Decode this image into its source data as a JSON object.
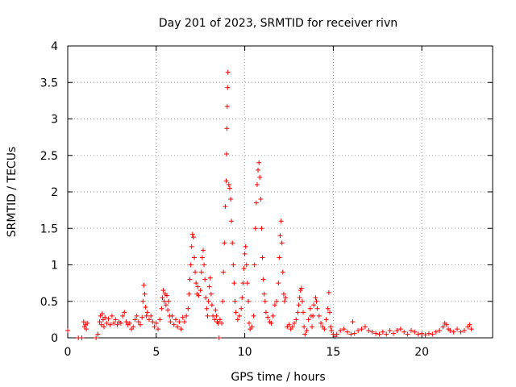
{
  "chart_data": {
    "type": "scatter",
    "title": "Day 201 of 2023, SRMTID for receiver rivn",
    "xlabel": "GPS time / hours",
    "ylabel": "SRMTID / TECUs",
    "xlim": [
      0,
      24
    ],
    "ylim": [
      0,
      4
    ],
    "xticks": [
      0,
      5,
      10,
      15,
      20
    ],
    "xtick_labels": [
      "0",
      "5",
      "10",
      "15",
      "20"
    ],
    "yticks": [
      0,
      0.5,
      1,
      1.5,
      2,
      2.5,
      3,
      3.5,
      4
    ],
    "ytick_labels": [
      "0",
      "0.5",
      "1",
      "1.5",
      "2",
      "2.5",
      "3",
      "3.5",
      "4"
    ],
    "grid": true,
    "marker": "+",
    "color": "#ff0000",
    "series": [
      {
        "name": "SRMTID",
        "points": [
          [
            0.0,
            0.1
          ],
          [
            0.6,
            0.0
          ],
          [
            0.8,
            0.0
          ],
          [
            0.9,
            0.22
          ],
          [
            0.95,
            0.15
          ],
          [
            1.0,
            0.18
          ],
          [
            1.05,
            0.12
          ],
          [
            1.1,
            0.2
          ],
          [
            1.6,
            0.0
          ],
          [
            1.7,
            0.05
          ],
          [
            1.8,
            0.22
          ],
          [
            1.85,
            0.3
          ],
          [
            1.9,
            0.18
          ],
          [
            1.95,
            0.33
          ],
          [
            2.0,
            0.25
          ],
          [
            2.05,
            0.15
          ],
          [
            2.1,
            0.28
          ],
          [
            2.2,
            0.2
          ],
          [
            2.3,
            0.26
          ],
          [
            2.4,
            0.18
          ],
          [
            2.5,
            0.3
          ],
          [
            2.6,
            0.2
          ],
          [
            2.7,
            0.25
          ],
          [
            2.8,
            0.18
          ],
          [
            2.9,
            0.22
          ],
          [
            3.0,
            0.2
          ],
          [
            3.1,
            0.3
          ],
          [
            3.2,
            0.35
          ],
          [
            3.3,
            0.22
          ],
          [
            3.4,
            0.18
          ],
          [
            3.5,
            0.2
          ],
          [
            3.6,
            0.12
          ],
          [
            3.7,
            0.15
          ],
          [
            3.8,
            0.25
          ],
          [
            3.9,
            0.3
          ],
          [
            4.0,
            0.22
          ],
          [
            4.1,
            0.18
          ],
          [
            4.2,
            0.28
          ],
          [
            4.25,
            0.5
          ],
          [
            4.3,
            0.72
          ],
          [
            4.35,
            0.6
          ],
          [
            4.4,
            0.42
          ],
          [
            4.45,
            0.3
          ],
          [
            4.5,
            0.35
          ],
          [
            4.6,
            0.25
          ],
          [
            4.7,
            0.3
          ],
          [
            4.8,
            0.22
          ],
          [
            4.9,
            0.15
          ],
          [
            5.0,
            0.2
          ],
          [
            5.1,
            0.12
          ],
          [
            5.2,
            0.25
          ],
          [
            5.3,
            0.4
          ],
          [
            5.35,
            0.55
          ],
          [
            5.4,
            0.65
          ],
          [
            5.45,
            0.5
          ],
          [
            5.5,
            0.6
          ],
          [
            5.55,
            0.45
          ],
          [
            5.6,
            0.58
          ],
          [
            5.65,
            0.38
          ],
          [
            5.7,
            0.5
          ],
          [
            5.75,
            0.3
          ],
          [
            5.8,
            0.22
          ],
          [
            5.9,
            0.3
          ],
          [
            6.0,
            0.18
          ],
          [
            6.1,
            0.25
          ],
          [
            6.2,
            0.15
          ],
          [
            6.3,
            0.22
          ],
          [
            6.4,
            0.12
          ],
          [
            6.5,
            0.28
          ],
          [
            6.6,
            0.22
          ],
          [
            6.7,
            0.3
          ],
          [
            6.8,
            0.4
          ],
          [
            6.85,
            0.6
          ],
          [
            6.9,
            0.8
          ],
          [
            6.95,
            1.0
          ],
          [
            7.0,
            1.25
          ],
          [
            7.05,
            1.42
          ],
          [
            7.1,
            1.38
          ],
          [
            7.15,
            1.1
          ],
          [
            7.2,
            0.9
          ],
          [
            7.25,
            0.75
          ],
          [
            7.3,
            0.6
          ],
          [
            7.35,
            0.7
          ],
          [
            7.4,
            0.58
          ],
          [
            7.5,
            0.65
          ],
          [
            7.55,
            0.9
          ],
          [
            7.6,
            1.1
          ],
          [
            7.65,
            1.2
          ],
          [
            7.7,
            1.0
          ],
          [
            7.75,
            0.8
          ],
          [
            7.8,
            0.55
          ],
          [
            7.85,
            0.4
          ],
          [
            7.9,
            0.3
          ],
          [
            7.95,
            0.5
          ],
          [
            8.0,
            0.7
          ],
          [
            8.05,
            0.82
          ],
          [
            8.1,
            0.6
          ],
          [
            8.15,
            0.45
          ],
          [
            8.2,
            0.3
          ],
          [
            8.3,
            0.25
          ],
          [
            8.35,
            0.38
          ],
          [
            8.4,
            0.3
          ],
          [
            8.45,
            0.22
          ],
          [
            8.5,
            0.2
          ],
          [
            8.55,
            0.0
          ],
          [
            8.6,
            0.25
          ],
          [
            8.7,
            0.2
          ],
          [
            8.75,
            0.5
          ],
          [
            8.8,
            0.9
          ],
          [
            8.85,
            1.3
          ],
          [
            8.9,
            1.8
          ],
          [
            8.95,
            2.15
          ],
          [
            8.97,
            2.52
          ],
          [
            8.99,
            2.87
          ],
          [
            9.01,
            3.17
          ],
          [
            9.03,
            3.43
          ],
          [
            9.05,
            3.64
          ],
          [
            9.1,
            2.1
          ],
          [
            9.15,
            2.05
          ],
          [
            9.2,
            1.9
          ],
          [
            9.25,
            1.6
          ],
          [
            9.3,
            1.3
          ],
          [
            9.35,
            1.0
          ],
          [
            9.4,
            0.75
          ],
          [
            9.45,
            0.5
          ],
          [
            9.5,
            0.35
          ],
          [
            9.6,
            0.25
          ],
          [
            9.7,
            0.3
          ],
          [
            9.8,
            0.4
          ],
          [
            9.85,
            0.55
          ],
          [
            9.9,
            0.75
          ],
          [
            9.95,
            0.95
          ],
          [
            10.0,
            1.15
          ],
          [
            10.05,
            1.25
          ],
          [
            10.1,
            1.0
          ],
          [
            10.15,
            0.75
          ],
          [
            10.2,
            0.5
          ],
          [
            10.25,
            0.2
          ],
          [
            10.3,
            0.12
          ],
          [
            10.4,
            0.15
          ],
          [
            10.5,
            0.3
          ],
          [
            10.55,
            1.0
          ],
          [
            10.6,
            1.5
          ],
          [
            10.65,
            1.85
          ],
          [
            10.7,
            2.1
          ],
          [
            10.75,
            2.3
          ],
          [
            10.8,
            2.4
          ],
          [
            10.85,
            2.2
          ],
          [
            10.9,
            1.9
          ],
          [
            10.95,
            1.5
          ],
          [
            11.0,
            1.1
          ],
          [
            11.05,
            0.8
          ],
          [
            11.1,
            0.6
          ],
          [
            11.15,
            0.5
          ],
          [
            11.2,
            0.35
          ],
          [
            11.3,
            0.28
          ],
          [
            11.4,
            0.22
          ],
          [
            11.5,
            0.2
          ],
          [
            11.6,
            0.3
          ],
          [
            11.7,
            0.45
          ],
          [
            11.8,
            0.5
          ],
          [
            11.9,
            0.75
          ],
          [
            11.95,
            1.1
          ],
          [
            12.0,
            1.4
          ],
          [
            12.05,
            1.6
          ],
          [
            12.1,
            1.3
          ],
          [
            12.15,
            0.9
          ],
          [
            12.2,
            0.6
          ],
          [
            12.25,
            0.5
          ],
          [
            12.3,
            0.55
          ],
          [
            12.4,
            0.15
          ],
          [
            12.5,
            0.18
          ],
          [
            12.6,
            0.12
          ],
          [
            12.7,
            0.15
          ],
          [
            12.8,
            0.2
          ],
          [
            12.9,
            0.25
          ],
          [
            13.0,
            0.35
          ],
          [
            13.05,
            0.45
          ],
          [
            13.1,
            0.55
          ],
          [
            13.15,
            0.65
          ],
          [
            13.2,
            0.68
          ],
          [
            13.25,
            0.5
          ],
          [
            13.3,
            0.35
          ],
          [
            13.35,
            0.15
          ],
          [
            13.4,
            0.05
          ],
          [
            13.5,
            0.1
          ],
          [
            13.6,
            0.25
          ],
          [
            13.7,
            0.4
          ],
          [
            13.75,
            0.3
          ],
          [
            13.8,
            0.15
          ],
          [
            13.85,
            0.3
          ],
          [
            13.9,
            0.45
          ],
          [
            14.0,
            0.55
          ],
          [
            14.05,
            0.5
          ],
          [
            14.1,
            0.4
          ],
          [
            14.2,
            0.3
          ],
          [
            14.3,
            0.2
          ],
          [
            14.4,
            0.15
          ],
          [
            14.5,
            0.12
          ],
          [
            14.6,
            0.25
          ],
          [
            14.7,
            0.4
          ],
          [
            14.75,
            0.62
          ],
          [
            14.8,
            0.35
          ],
          [
            14.85,
            0.15
          ],
          [
            14.9,
            0.1
          ],
          [
            15.0,
            0.05
          ],
          [
            15.1,
            0.02
          ],
          [
            15.2,
            0.05
          ],
          [
            15.4,
            0.1
          ],
          [
            15.6,
            0.12
          ],
          [
            15.8,
            0.08
          ],
          [
            16.0,
            0.05
          ],
          [
            16.1,
            0.22
          ],
          [
            16.2,
            0.06
          ],
          [
            16.4,
            0.1
          ],
          [
            16.6,
            0.12
          ],
          [
            16.8,
            0.15
          ],
          [
            17.0,
            0.1
          ],
          [
            17.2,
            0.08
          ],
          [
            17.4,
            0.06
          ],
          [
            17.6,
            0.05
          ],
          [
            17.8,
            0.08
          ],
          [
            18.0,
            0.05
          ],
          [
            18.2,
            0.1
          ],
          [
            18.4,
            0.06
          ],
          [
            18.6,
            0.1
          ],
          [
            18.8,
            0.12
          ],
          [
            19.0,
            0.08
          ],
          [
            19.2,
            0.05
          ],
          [
            19.4,
            0.1
          ],
          [
            19.6,
            0.08
          ],
          [
            19.8,
            0.05
          ],
          [
            20.0,
            0.06
          ],
          [
            20.2,
            0.04
          ],
          [
            20.4,
            0.06
          ],
          [
            20.6,
            0.05
          ],
          [
            20.8,
            0.08
          ],
          [
            21.0,
            0.1
          ],
          [
            21.2,
            0.15
          ],
          [
            21.3,
            0.2
          ],
          [
            21.4,
            0.18
          ],
          [
            21.5,
            0.12
          ],
          [
            21.6,
            0.1
          ],
          [
            21.8,
            0.08
          ],
          [
            22.0,
            0.12
          ],
          [
            22.2,
            0.08
          ],
          [
            22.4,
            0.1
          ],
          [
            22.6,
            0.15
          ],
          [
            22.7,
            0.18
          ],
          [
            22.8,
            0.12
          ]
        ]
      }
    ]
  }
}
